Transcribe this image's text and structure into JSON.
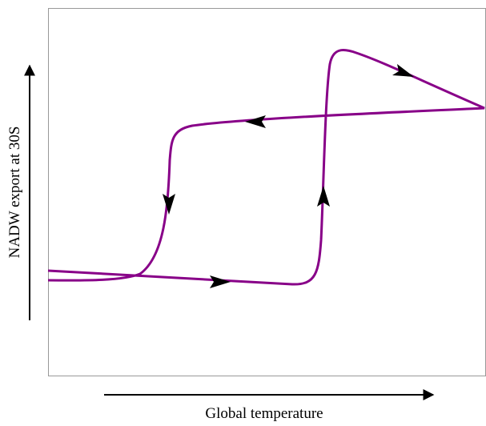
{
  "axes": {
    "y_label": "NADW export at 30S",
    "x_label": "Global temperature"
  }
}
